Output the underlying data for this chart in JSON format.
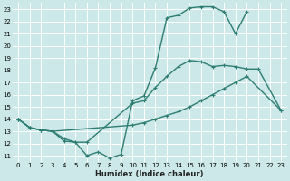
{
  "bg_color": "#cce8e8",
  "grid_color": "#ffffff",
  "line_color": "#2e7d72",
  "line_width": 1.0,
  "marker": "+",
  "marker_size": 3.5,
  "marker_lw": 0.8,
  "xlabel": "Humidex (Indice chaleur)",
  "xlabel_fontsize": 6.0,
  "xlim": [
    -0.5,
    23.5
  ],
  "ylim": [
    10.5,
    23.5
  ],
  "yticks": [
    11,
    12,
    13,
    14,
    15,
    16,
    17,
    18,
    19,
    20,
    21,
    22,
    23
  ],
  "xticks": [
    0,
    1,
    2,
    3,
    4,
    5,
    6,
    7,
    8,
    9,
    10,
    11,
    12,
    13,
    14,
    15,
    16,
    17,
    18,
    19,
    20,
    21,
    22,
    23
  ],
  "tick_fontsize": 5.0,
  "curve1_x": [
    0,
    1,
    2,
    3,
    4,
    5,
    6,
    7,
    8,
    9,
    10,
    11,
    12,
    13,
    14,
    15,
    16,
    17,
    18,
    19,
    20
  ],
  "curve1_y": [
    14,
    13.3,
    13.1,
    13.0,
    12.2,
    12.1,
    11.0,
    11.3,
    10.8,
    11.1,
    15.5,
    15.9,
    18.2,
    22.3,
    22.5,
    23.1,
    23.2,
    23.2,
    22.8,
    21.0,
    22.8
  ],
  "curve2_x": [
    0,
    1,
    2,
    3,
    4,
    5,
    6,
    10,
    11,
    12,
    13,
    14,
    15,
    16,
    17,
    18,
    19,
    20,
    21,
    23
  ],
  "curve2_y": [
    14,
    13.3,
    13.1,
    13.0,
    12.4,
    12.1,
    12.1,
    15.3,
    15.5,
    16.6,
    17.5,
    18.3,
    18.8,
    18.7,
    18.3,
    18.4,
    18.3,
    18.1,
    18.1,
    14.7
  ],
  "curve3_x": [
    0,
    1,
    2,
    3,
    10,
    11,
    12,
    13,
    14,
    15,
    16,
    17,
    18,
    19,
    20,
    23
  ],
  "curve3_y": [
    14,
    13.3,
    13.1,
    13.0,
    13.5,
    13.7,
    14.0,
    14.3,
    14.6,
    15.0,
    15.5,
    16.0,
    16.5,
    17.0,
    17.5,
    14.7
  ]
}
